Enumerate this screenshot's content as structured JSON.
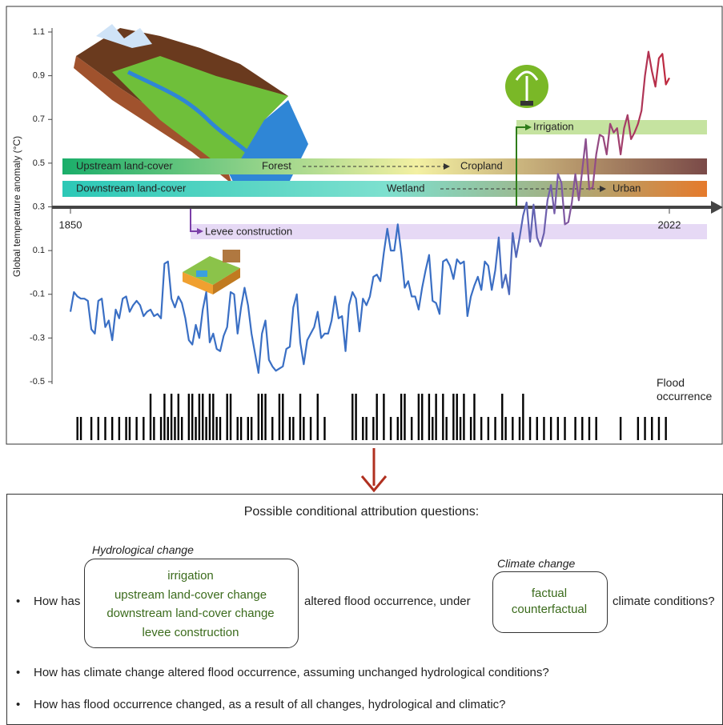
{
  "chart_data": {
    "type": "line",
    "y_label": "Global temperature anomaly (°C)",
    "ylim": [
      -0.5,
      1.1
    ],
    "yticks": [
      -0.5,
      -0.3,
      -0.1,
      0.1,
      0.3,
      0.5,
      0.7,
      0.9,
      1.1
    ],
    "xlim": [
      1850,
      2022
    ],
    "xticks": [
      1850,
      2022
    ],
    "x": [
      1850,
      1851,
      1852,
      1853,
      1854,
      1855,
      1856,
      1857,
      1858,
      1859,
      1860,
      1861,
      1862,
      1863,
      1864,
      1865,
      1866,
      1867,
      1868,
      1869,
      1870,
      1871,
      1872,
      1873,
      1874,
      1875,
      1876,
      1877,
      1878,
      1879,
      1880,
      1881,
      1882,
      1883,
      1884,
      1885,
      1886,
      1887,
      1888,
      1889,
      1890,
      1891,
      1892,
      1893,
      1894,
      1895,
      1896,
      1897,
      1898,
      1899,
      1900,
      1901,
      1902,
      1903,
      1904,
      1905,
      1906,
      1907,
      1908,
      1909,
      1910,
      1911,
      1912,
      1913,
      1914,
      1915,
      1916,
      1917,
      1918,
      1919,
      1920,
      1921,
      1922,
      1923,
      1924,
      1925,
      1926,
      1927,
      1928,
      1929,
      1930,
      1931,
      1932,
      1933,
      1934,
      1935,
      1936,
      1937,
      1938,
      1939,
      1940,
      1941,
      1942,
      1943,
      1944,
      1945,
      1946,
      1947,
      1948,
      1949,
      1950,
      1951,
      1952,
      1953,
      1954,
      1955,
      1956,
      1957,
      1958,
      1959,
      1960,
      1961,
      1962,
      1963,
      1964,
      1965,
      1966,
      1967,
      1968,
      1969,
      1970,
      1971,
      1972,
      1973,
      1974,
      1975,
      1976,
      1977,
      1978,
      1979,
      1980,
      1981,
      1982,
      1983,
      1984,
      1985,
      1986,
      1987,
      1988,
      1989,
      1990,
      1991,
      1992,
      1993,
      1994,
      1995,
      1996,
      1997,
      1998,
      1999,
      2000,
      2001,
      2002,
      2003,
      2004,
      2005,
      2006,
      2007,
      2008,
      2009,
      2010,
      2011,
      2012,
      2013,
      2014,
      2015,
      2016,
      2017,
      2018,
      2019,
      2020,
      2021,
      2022
    ],
    "values": [
      -0.18,
      -0.09,
      -0.11,
      -0.12,
      -0.12,
      -0.13,
      -0.26,
      -0.28,
      -0.13,
      -0.12,
      -0.25,
      -0.22,
      -0.31,
      -0.17,
      -0.21,
      -0.12,
      -0.11,
      -0.18,
      -0.15,
      -0.13,
      -0.15,
      -0.2,
      -0.18,
      -0.17,
      -0.2,
      -0.19,
      -0.21,
      0.04,
      0.05,
      -0.12,
      -0.16,
      -0.11,
      -0.14,
      -0.21,
      -0.31,
      -0.33,
      -0.24,
      -0.3,
      -0.17,
      -0.09,
      -0.32,
      -0.28,
      -0.35,
      -0.36,
      -0.29,
      -0.25,
      -0.09,
      -0.1,
      -0.28,
      -0.16,
      -0.07,
      -0.15,
      -0.28,
      -0.37,
      -0.46,
      -0.28,
      -0.22,
      -0.4,
      -0.43,
      -0.45,
      -0.44,
      -0.43,
      -0.35,
      -0.34,
      -0.16,
      -0.1,
      -0.32,
      -0.42,
      -0.31,
      -0.28,
      -0.25,
      -0.18,
      -0.3,
      -0.28,
      -0.28,
      -0.22,
      -0.11,
      -0.21,
      -0.2,
      -0.36,
      -0.15,
      -0.09,
      -0.12,
      -0.27,
      -0.12,
      -0.15,
      -0.11,
      -0.02,
      -0.01,
      -0.04,
      0.09,
      0.2,
      0.1,
      0.1,
      0.22,
      0.09,
      -0.07,
      -0.04,
      -0.11,
      -0.11,
      -0.17,
      -0.07,
      0.01,
      0.08,
      -0.13,
      -0.14,
      -0.19,
      0.05,
      0.06,
      0.03,
      -0.03,
      0.06,
      0.04,
      0.05,
      -0.2,
      -0.11,
      -0.06,
      -0.02,
      -0.08,
      0.05,
      0.03,
      -0.08,
      0.01,
      0.16,
      -0.07,
      -0.01,
      -0.1,
      0.18,
      0.07,
      0.16,
      0.26,
      0.32,
      0.14,
      0.31,
      0.16,
      0.12,
      0.18,
      0.33,
      0.4,
      0.27,
      0.45,
      0.41,
      0.22,
      0.23,
      0.32,
      0.45,
      0.33,
      0.47,
      0.61,
      0.38,
      0.39,
      0.54,
      0.63,
      0.62,
      0.54,
      0.68,
      0.64,
      0.66,
      0.54,
      0.66,
      0.72,
      0.61,
      0.64,
      0.68,
      0.74,
      0.9,
      1.01,
      0.92,
      0.85,
      0.98,
      1.0,
      0.86,
      0.89
    ],
    "colors": [
      "#3a6fc4",
      "#3a6fc4",
      "#7d5ba6",
      "#c0283c"
    ]
  },
  "timeline": {
    "upstream": {
      "label": "Upstream land-cover",
      "from": "Forest",
      "to": "Cropland"
    },
    "downstream": {
      "label": "Downstream land-cover",
      "from": "Wetland",
      "to": "Urban"
    },
    "irrigation": "Irrigation",
    "levee": "Levee construction"
  },
  "flood_occurrence": {
    "label": "Flood occurrence",
    "years": [
      1852,
      1853,
      1856,
      1858,
      1860,
      1862,
      1864,
      1866,
      1867,
      1869,
      1871,
      1873,
      1874,
      1876,
      1877,
      1878,
      1879,
      1880,
      1881,
      1882,
      1884,
      1885,
      1886,
      1887,
      1888,
      1889,
      1890,
      1891,
      1892,
      1893,
      1895,
      1896,
      1898,
      1899,
      1901,
      1902,
      1904,
      1905,
      1906,
      1908,
      1910,
      1911,
      1913,
      1914,
      1916,
      1917,
      1919,
      1921,
      1923,
      1931,
      1932,
      1934,
      1935,
      1937,
      1938,
      1940,
      1942,
      1944,
      1945,
      1946,
      1948,
      1950,
      1951,
      1953,
      1954,
      1955,
      1957,
      1958,
      1960,
      1961,
      1962,
      1963,
      1965,
      1966,
      1968,
      1970,
      1972,
      1974,
      1975,
      1977,
      1979,
      1980,
      1982,
      1984,
      1986,
      1988,
      1990,
      1992,
      1995,
      1997,
      1999,
      2001,
      2008,
      2013,
      2015,
      2017,
      2019,
      2021
    ],
    "counts": [
      1,
      1,
      1,
      1,
      1,
      1,
      1,
      1,
      1,
      1,
      1,
      2,
      1,
      1,
      2,
      1,
      2,
      1,
      2,
      1,
      2,
      2,
      1,
      2,
      2,
      1,
      2,
      2,
      1,
      1,
      2,
      2,
      1,
      1,
      1,
      1,
      2,
      2,
      2,
      1,
      2,
      2,
      1,
      1,
      2,
      1,
      1,
      2,
      1,
      2,
      2,
      1,
      1,
      1,
      2,
      2,
      1,
      1,
      2,
      2,
      1,
      2,
      2,
      2,
      1,
      2,
      2,
      1,
      2,
      2,
      1,
      2,
      1,
      2,
      1,
      1,
      1,
      2,
      1,
      1,
      1,
      2,
      1,
      1,
      1,
      1,
      1,
      1,
      1,
      1,
      1,
      1,
      1,
      1,
      1,
      1,
      1,
      1
    ]
  },
  "questions": {
    "title": "Possible conditional attribution questions:",
    "q1": {
      "lead": "How has",
      "hydro_title": "Hydrological change",
      "hydro_items": [
        "irrigation",
        "upstream land-cover change",
        "downstream land-cover change",
        "levee construction"
      ],
      "middle": "altered flood occurrence, under",
      "climate_title": "Climate change",
      "climate_items": [
        "factual",
        "counterfactual"
      ],
      "tail": "climate conditions?"
    },
    "q2": "How has climate change altered flood occurrence, assuming unchanged hydrological conditions?",
    "q3": "How has flood occurrence changed, as a result of all changes, hydrological and climatic?"
  }
}
